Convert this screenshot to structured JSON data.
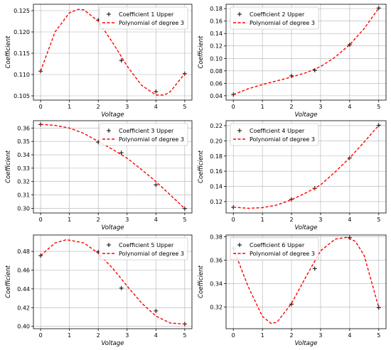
{
  "chart_data": [
    {
      "type": "scatter",
      "xlabel": "Voltage",
      "ylabel": "Coefficient",
      "xlim": [
        -0.25,
        5.25
      ],
      "ylim": [
        0.104,
        0.1265
      ],
      "xticks": [
        0,
        1,
        2,
        3,
        4,
        5
      ],
      "yticks": [
        0.105,
        0.11,
        0.115,
        0.12,
        0.125
      ],
      "ytick_labels": [
        "0.105",
        "0.110",
        "0.115",
        "0.120",
        "0.125"
      ],
      "grid": true,
      "legend_position": "top-right",
      "series": [
        {
          "name": "Coefficient 1 Upper",
          "kind": "points",
          "marker": "+",
          "color": "#000000",
          "x": [
            0,
            2,
            2.8,
            4,
            5
          ],
          "y": [
            0.1108,
            0.1228,
            0.1133,
            0.106,
            0.1102
          ]
        },
        {
          "name": "Polynomial of degree 3",
          "kind": "curve",
          "color": "#ff0000",
          "x": [
            0,
            0.5,
            1,
            1.3,
            1.5,
            2,
            2.5,
            3,
            3.5,
            4,
            4.3,
            4.5,
            5
          ],
          "y": [
            0.1108,
            0.12,
            0.1245,
            0.1253,
            0.1252,
            0.1225,
            0.1175,
            0.112,
            0.1075,
            0.1052,
            0.1052,
            0.106,
            0.1102
          ]
        }
      ]
    },
    {
      "type": "scatter",
      "xlabel": "Voltage",
      "ylabel": "Coefficient",
      "xlim": [
        -0.25,
        5.25
      ],
      "ylim": [
        0.033,
        0.187
      ],
      "xticks": [
        0,
        1,
        2,
        3,
        4,
        5
      ],
      "yticks": [
        0.04,
        0.06,
        0.08,
        0.1,
        0.12,
        0.14,
        0.16,
        0.18
      ],
      "ytick_labels": [
        "0.04",
        "0.06",
        "0.08",
        "0.10",
        "0.12",
        "0.14",
        "0.16",
        "0.18"
      ],
      "grid": true,
      "legend_position": "top-left",
      "series": [
        {
          "name": "Coefficient 2 Upper",
          "kind": "points",
          "marker": "+",
          "color": "#000000",
          "x": [
            0,
            2,
            2.8,
            4,
            5
          ],
          "y": [
            0.042,
            0.072,
            0.081,
            0.122,
            0.181
          ]
        },
        {
          "name": "Polynomial of degree 3",
          "kind": "curve",
          "color": "#ff0000",
          "x": [
            0,
            0.5,
            1,
            1.5,
            2,
            2.5,
            3,
            3.5,
            4,
            4.5,
            5
          ],
          "y": [
            0.042,
            0.051,
            0.058,
            0.064,
            0.07,
            0.077,
            0.087,
            0.102,
            0.122,
            0.148,
            0.181
          ]
        }
      ]
    },
    {
      "type": "scatter",
      "xlabel": "Voltage",
      "ylabel": "Coefficient",
      "xlim": [
        -0.25,
        5.25
      ],
      "ylim": [
        0.2965,
        0.3655
      ],
      "xticks": [
        0,
        1,
        2,
        3,
        4,
        5
      ],
      "yticks": [
        0.3,
        0.31,
        0.32,
        0.33,
        0.34,
        0.35,
        0.36
      ],
      "ytick_labels": [
        "0.30",
        "0.31",
        "0.32",
        "0.33",
        "0.34",
        "0.35",
        "0.36"
      ],
      "grid": true,
      "legend_position": "top-right",
      "series": [
        {
          "name": "Coefficient 3 Upper",
          "kind": "points",
          "marker": "+",
          "color": "#000000",
          "x": [
            0,
            2,
            2.8,
            4,
            5
          ],
          "y": [
            0.3627,
            0.3495,
            0.3415,
            0.3175,
            0.2998
          ]
        },
        {
          "name": "Polynomial of degree 3",
          "kind": "curve",
          "color": "#ff0000",
          "x": [
            0,
            0.5,
            1,
            1.5,
            2,
            2.5,
            3,
            3.5,
            4,
            4.5,
            5
          ],
          "y": [
            0.3628,
            0.362,
            0.36,
            0.356,
            0.35,
            0.344,
            0.3375,
            0.329,
            0.32,
            0.31,
            0.2998
          ]
        }
      ]
    },
    {
      "type": "scatter",
      "xlabel": "Voltage",
      "ylabel": "Coefficient",
      "xlim": [
        -0.25,
        5.25
      ],
      "ylim": [
        0.105,
        0.2265
      ],
      "xticks": [
        0,
        1,
        2,
        3,
        4,
        5
      ],
      "yticks": [
        0.12,
        0.14,
        0.16,
        0.18,
        0.2,
        0.22
      ],
      "ytick_labels": [
        "0.12",
        "0.14",
        "0.16",
        "0.18",
        "0.20",
        "0.22"
      ],
      "grid": true,
      "legend_position": "top-left",
      "series": [
        {
          "name": "Coefficient 4 Upper",
          "kind": "points",
          "marker": "+",
          "color": "#000000",
          "x": [
            0,
            2,
            2.8,
            4,
            5
          ],
          "y": [
            0.1125,
            0.123,
            0.1375,
            0.1775,
            0.2205
          ]
        },
        {
          "name": "Polynomial of degree 3",
          "kind": "curve",
          "color": "#ff0000",
          "x": [
            0,
            0.5,
            1,
            1.5,
            2,
            2.5,
            3,
            3.5,
            4,
            4.5,
            5
          ],
          "y": [
            0.1128,
            0.1112,
            0.112,
            0.1155,
            0.1225,
            0.1315,
            0.142,
            0.159,
            0.1775,
            0.1985,
            0.2205
          ]
        }
      ]
    },
    {
      "type": "scatter",
      "xlabel": "Voltage",
      "ylabel": "Coefficient",
      "xlim": [
        -0.25,
        5.25
      ],
      "ylim": [
        0.3975,
        0.4975
      ],
      "xticks": [
        0,
        1,
        2,
        3,
        4,
        5
      ],
      "yticks": [
        0.4,
        0.42,
        0.44,
        0.46,
        0.48
      ],
      "ytick_labels": [
        "0.40",
        "0.42",
        "0.44",
        "0.46",
        "0.48"
      ],
      "grid": true,
      "legend_position": "top-right",
      "series": [
        {
          "name": "Coefficient 5 Upper",
          "kind": "points",
          "marker": "+",
          "color": "#000000",
          "x": [
            0,
            2,
            2.8,
            4,
            5
          ],
          "y": [
            0.4755,
            0.4795,
            0.4408,
            0.4165,
            0.4025
          ]
        },
        {
          "name": "Polynomial of degree 3",
          "kind": "curve",
          "color": "#ff0000",
          "x": [
            0,
            0.5,
            0.9,
            1.5,
            2,
            2.5,
            3,
            3.5,
            4,
            4.5,
            5
          ],
          "y": [
            0.4755,
            0.489,
            0.4925,
            0.489,
            0.478,
            0.462,
            0.443,
            0.425,
            0.411,
            0.4035,
            0.4025
          ]
        }
      ]
    },
    {
      "type": "scatter",
      "xlabel": "Voltage",
      "ylabel": "Coefficient",
      "xlim": [
        -0.25,
        5.25
      ],
      "ylim": [
        0.3015,
        0.3815
      ],
      "xticks": [
        0,
        1,
        2,
        3,
        4,
        5
      ],
      "yticks": [
        0.32,
        0.34,
        0.36,
        0.38
      ],
      "ytick_labels": [
        "0.32",
        "0.34",
        "0.36",
        "0.38"
      ],
      "grid": true,
      "legend_position": "top-left",
      "series": [
        {
          "name": "Coefficient 6 Upper",
          "kind": "points",
          "marker": "+",
          "color": "#000000",
          "x": [
            0,
            2,
            2.8,
            4,
            5
          ],
          "y": [
            0.3702,
            0.3225,
            0.3528,
            0.3792,
            0.3195
          ]
        },
        {
          "name": "Polynomial of degree 3",
          "kind": "curve",
          "color": "#ff0000",
          "x": [
            0,
            0.5,
            1,
            1.3,
            1.5,
            2,
            2.5,
            3,
            3.5,
            3.9,
            4.2,
            4.5,
            5
          ],
          "y": [
            0.3702,
            0.338,
            0.312,
            0.306,
            0.307,
            0.323,
            0.346,
            0.368,
            0.378,
            0.3795,
            0.376,
            0.364,
            0.3195
          ]
        }
      ]
    }
  ]
}
